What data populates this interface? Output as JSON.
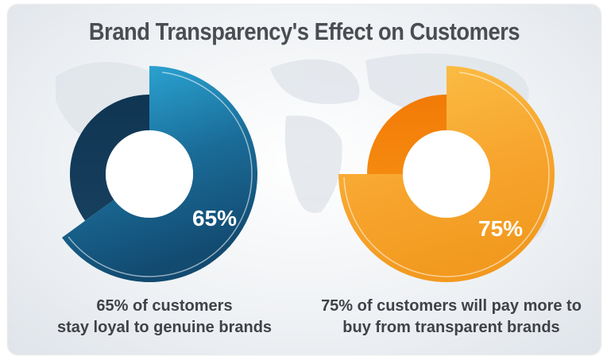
{
  "title": "Brand Transparency's Effect on Customers",
  "colors": {
    "blue_dark": "#0f3552",
    "blue_mid": "#1a6c98",
    "blue_light": "#2fb1e0",
    "orange_dark": "#f27a06",
    "orange_mid": "#f7a52e",
    "orange_light": "#fbc24a"
  },
  "chart_data": [
    {
      "type": "pie",
      "values": [
        65,
        35
      ],
      "data_label": "65%",
      "caption": [
        "65% of customers",
        "stay loyal to genuine brands"
      ]
    },
    {
      "type": "pie",
      "values": [
        75,
        25
      ],
      "data_label": "75%",
      "caption": [
        "75% of customers will pay more to",
        "buy from transparent brands"
      ]
    }
  ]
}
